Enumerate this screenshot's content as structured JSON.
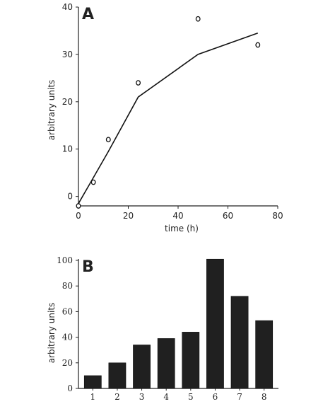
{
  "chart_data": [
    {
      "panel": "A",
      "type": "scatter",
      "xlabel": "time (h)",
      "ylabel": "arbitrary units",
      "xlim": [
        0,
        80
      ],
      "ylim": [
        -2,
        40
      ],
      "xticks": [
        0,
        20,
        40,
        60,
        80
      ],
      "yticks": [
        0,
        10,
        20,
        30,
        40
      ],
      "points": [
        {
          "x": 0,
          "y": -2
        },
        {
          "x": 6,
          "y": 3
        },
        {
          "x": 12,
          "y": 12
        },
        {
          "x": 24,
          "y": 24
        },
        {
          "x": 48,
          "y": 37.5
        },
        {
          "x": 72,
          "y": 32
        }
      ],
      "line": [
        {
          "x": 0,
          "y": -1.5
        },
        {
          "x": 6,
          "y": 4
        },
        {
          "x": 12,
          "y": 9.5
        },
        {
          "x": 24,
          "y": 21
        },
        {
          "x": 48,
          "y": 30
        },
        {
          "x": 72,
          "y": 34.5
        }
      ],
      "grid": false
    },
    {
      "panel": "B",
      "type": "bar",
      "ylabel": "arbitrary units",
      "categories": [
        "1",
        "2",
        "3",
        "4",
        "5",
        "6",
        "7",
        "8"
      ],
      "values": [
        10,
        20,
        34,
        39,
        44,
        101,
        72,
        53
      ],
      "ylim": [
        0,
        100
      ],
      "yticks": [
        0,
        20,
        40,
        60,
        80,
        100
      ],
      "grid": false
    }
  ]
}
